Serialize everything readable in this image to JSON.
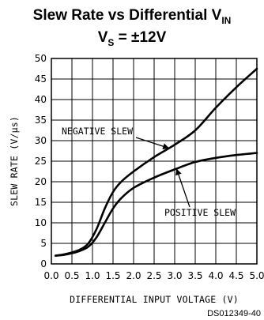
{
  "chart_data": {
    "type": "line",
    "title": {
      "line1_main": "Slew Rate vs Differential V",
      "line1_sub": "IN",
      "line2_main": "V",
      "line2_sub": "S",
      "line2_rest": " = ±12V"
    },
    "xlabel": "DIFFERENTIAL INPUT VOLTAGE (V)",
    "ylabel": "SLEW RATE (V/μs)",
    "xlim": [
      0,
      5
    ],
    "ylim": [
      0,
      50
    ],
    "x_ticks": [
      "0.0",
      "0.5",
      "1.0",
      "1.5",
      "2.0",
      "2.5",
      "3.0",
      "3.5",
      "4.0",
      "4.5",
      "5.0"
    ],
    "y_ticks": [
      "0",
      "5",
      "10",
      "15",
      "20",
      "25",
      "30",
      "35",
      "40",
      "45",
      "50"
    ],
    "grid": true,
    "series": [
      {
        "name": "NEGATIVE SLEW",
        "x": [
          0.1,
          0.3,
          0.5,
          0.7,
          0.9,
          1.1,
          1.3,
          1.5,
          1.7,
          2.0,
          2.5,
          3.0,
          3.5,
          4.0,
          4.5,
          5.0
        ],
        "y": [
          2,
          2.3,
          2.8,
          3.5,
          5,
          8.5,
          13.5,
          17.5,
          20,
          22.5,
          26,
          29,
          32.5,
          38,
          43,
          47.5
        ]
      },
      {
        "name": "POSITIVE SLEW",
        "x": [
          0.1,
          0.3,
          0.5,
          0.7,
          0.9,
          1.1,
          1.3,
          1.5,
          1.7,
          2.0,
          2.5,
          3.0,
          3.5,
          4.0,
          4.5,
          5.0
        ],
        "y": [
          2,
          2.2,
          2.6,
          3.2,
          4.2,
          6.5,
          10,
          13.5,
          16,
          18.5,
          21,
          23,
          24.8,
          25.8,
          26.5,
          27
        ]
      }
    ],
    "annotations": [
      {
        "text": "NEGATIVE SLEW",
        "target_x": 2.85,
        "target_y": 28.2
      },
      {
        "text": "POSITIVE SLEW",
        "target_x": 3.05,
        "target_y": 23.2
      }
    ],
    "figure_code": "DS012349-40"
  }
}
